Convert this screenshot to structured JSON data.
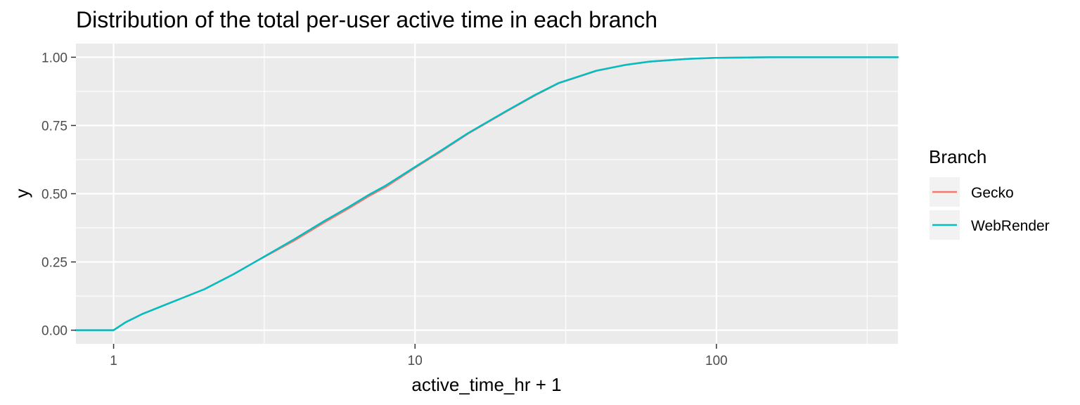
{
  "chart_data": {
    "type": "line",
    "title": "Distribution of the total per-user active time in each branch",
    "xlabel": "active_time_hr + 1",
    "ylabel": "y",
    "x_scale": "log10",
    "xlim": [
      0.75,
      400
    ],
    "ylim": [
      -0.05,
      1.05
    ],
    "x_ticks": [
      {
        "value": 1,
        "label": "1"
      },
      {
        "value": 10,
        "label": "10"
      },
      {
        "value": 100,
        "label": "100"
      }
    ],
    "x_minor_ticks": [
      3.1623,
      31.623,
      316.23
    ],
    "y_ticks": [
      {
        "value": 0,
        "label": "0.00"
      },
      {
        "value": 0.25,
        "label": "0.25"
      },
      {
        "value": 0.5,
        "label": "0.50"
      },
      {
        "value": 0.75,
        "label": "0.75"
      },
      {
        "value": 1,
        "label": "1.00"
      }
    ],
    "y_minor_ticks": [
      0.125,
      0.375,
      0.625,
      0.875
    ],
    "grid": true,
    "legend": {
      "title": "Branch",
      "position": "right"
    },
    "series": [
      {
        "name": "Gecko",
        "color": "#F8766D",
        "x": [
          0.75,
          0.99,
          1.0,
          1.1,
          1.25,
          1.5,
          2.0,
          2.5,
          3.0,
          3.5,
          4.0,
          5.0,
          6.0,
          7.0,
          8.0,
          10.0,
          12.0,
          15.0,
          20.0,
          25.0,
          30.0,
          40.0,
          50.0,
          60.0,
          80.0,
          100.0,
          150.0,
          200.0,
          400.0
        ],
        "y": [
          0.0,
          0.0,
          0.0,
          0.03,
          0.06,
          0.095,
          0.15,
          0.205,
          0.255,
          0.295,
          0.33,
          0.395,
          0.445,
          0.49,
          0.525,
          0.595,
          0.65,
          0.72,
          0.8,
          0.86,
          0.905,
          0.95,
          0.972,
          0.984,
          0.994,
          0.998,
          1.0,
          1.0,
          1.0
        ]
      },
      {
        "name": "WebRender",
        "color": "#00BFC4",
        "x": [
          0.75,
          0.99,
          1.0,
          1.1,
          1.25,
          1.5,
          2.0,
          2.5,
          3.0,
          3.5,
          4.0,
          5.0,
          6.0,
          7.0,
          8.0,
          10.0,
          12.0,
          15.0,
          20.0,
          25.0,
          30.0,
          40.0,
          50.0,
          60.0,
          80.0,
          100.0,
          150.0,
          200.0,
          400.0
        ],
        "y": [
          0.0,
          0.0,
          0.0,
          0.03,
          0.06,
          0.095,
          0.15,
          0.205,
          0.255,
          0.298,
          0.335,
          0.4,
          0.45,
          0.495,
          0.53,
          0.598,
          0.653,
          0.722,
          0.802,
          0.862,
          0.906,
          0.951,
          0.972,
          0.984,
          0.994,
          0.998,
          1.0,
          1.0,
          1.0
        ]
      }
    ]
  }
}
